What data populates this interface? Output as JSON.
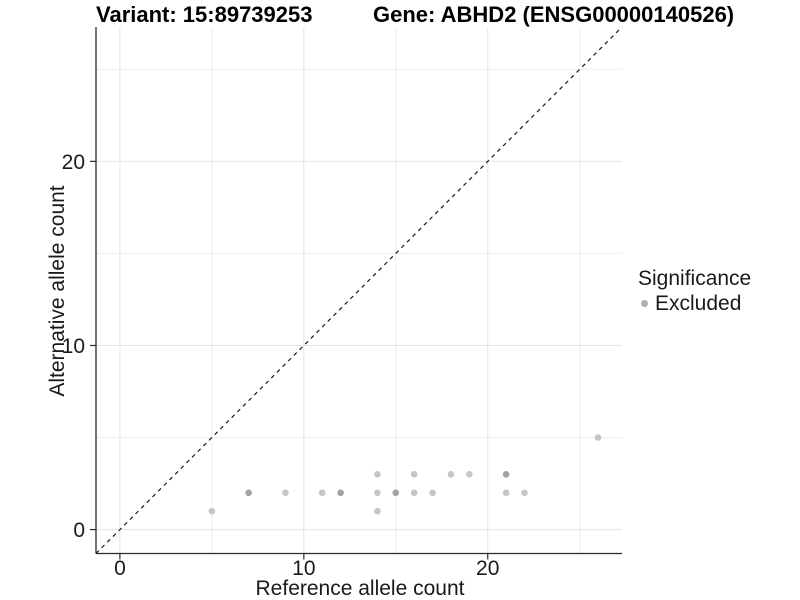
{
  "header": {
    "title_left": "Variant: 15:89739253",
    "title_right": "Gene: ABHD2 (ENSG00000140526)"
  },
  "chart_data": {
    "type": "scatter",
    "xlabel": "Reference allele count",
    "ylabel": "Alternative allele count",
    "xlim": [
      -1.3,
      27.3
    ],
    "ylim": [
      -1.3,
      27.3
    ],
    "x_major_ticks": [
      0,
      10,
      20
    ],
    "y_major_ticks": [
      0,
      10,
      20
    ],
    "x_minor_gridlines": [
      5,
      15,
      25
    ],
    "y_minor_gridlines": [
      5,
      15,
      25
    ],
    "grid": true,
    "reference_line": {
      "type": "identity",
      "slope": 1,
      "intercept": 0,
      "style": "dashed",
      "color": "#1a1a1a"
    },
    "point_style": {
      "radius": 3.3,
      "color": "#c6c6c6",
      "overlap_color": "#a2a2a2"
    },
    "points": [
      {
        "x": 5,
        "y": 1,
        "count": 1
      },
      {
        "x": 7,
        "y": 2,
        "count": 2
      },
      {
        "x": 9,
        "y": 2,
        "count": 1
      },
      {
        "x": 11,
        "y": 2,
        "count": 1
      },
      {
        "x": 12,
        "y": 2,
        "count": 2
      },
      {
        "x": 14,
        "y": 1,
        "count": 1
      },
      {
        "x": 14,
        "y": 2,
        "count": 1
      },
      {
        "x": 14,
        "y": 3,
        "count": 1
      },
      {
        "x": 15,
        "y": 2,
        "count": 2
      },
      {
        "x": 16,
        "y": 2,
        "count": 1
      },
      {
        "x": 16,
        "y": 3,
        "count": 1
      },
      {
        "x": 17,
        "y": 2,
        "count": 1
      },
      {
        "x": 18,
        "y": 3,
        "count": 1
      },
      {
        "x": 19,
        "y": 3,
        "count": 1
      },
      {
        "x": 21,
        "y": 2,
        "count": 1
      },
      {
        "x": 21,
        "y": 3,
        "count": 2
      },
      {
        "x": 22,
        "y": 2,
        "count": 1
      },
      {
        "x": 26,
        "y": 5,
        "count": 1
      }
    ],
    "legend": {
      "position": "right",
      "title": "Significance",
      "items": [
        {
          "label": "Excluded",
          "color": "#aeaeae"
        }
      ]
    },
    "colors": {
      "grid_major": "#e5e5e5",
      "grid_minor": "#eeeeee",
      "axis_line": "#2b2b2b",
      "tick_label": "#1a1a1a"
    }
  }
}
